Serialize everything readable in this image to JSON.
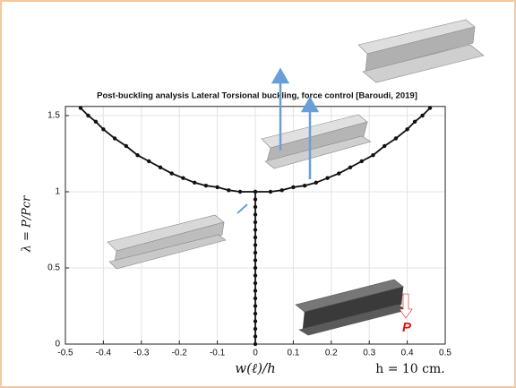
{
  "chart_data": {
    "type": "line",
    "title": "Post-buckling analysis Lateral Torsional buckling,  force control  [Baroudi, 2019]",
    "x_label": "w(ℓ)/h",
    "y_label": "λ = P/Pcr",
    "annotations": [
      "h = 10 cm.",
      "P"
    ],
    "xlim": [
      -0.5,
      0.5
    ],
    "xticks": [
      -0.5,
      -0.4,
      -0.3,
      -0.2,
      -0.1,
      0,
      0.1,
      0.2,
      0.3,
      0.4,
      0.5
    ],
    "ylim": [
      0,
      1.56
    ],
    "yticks": [
      0,
      0.5,
      1,
      1.5
    ],
    "grid": true,
    "series": [
      {
        "color": "#111111",
        "x": [
          -0.46,
          -0.44,
          -0.42,
          -0.4,
          -0.37,
          -0.34,
          -0.31,
          -0.28,
          -0.25,
          -0.22,
          -0.19,
          -0.16,
          -0.13,
          -0.1,
          -0.07,
          -0.04,
          0,
          0.04,
          0.07,
          0.1,
          0.13,
          0.16,
          0.19,
          0.22,
          0.25,
          0.28,
          0.31,
          0.34,
          0.37,
          0.4,
          0.42,
          0.44,
          0.46
        ],
        "values": [
          1.55,
          1.5,
          1.46,
          1.41,
          1.35,
          1.3,
          1.24,
          1.2,
          1.16,
          1.12,
          1.09,
          1.06,
          1.04,
          1.03,
          1.01,
          1.0,
          1.0,
          1.0,
          1.01,
          1.03,
          1.04,
          1.06,
          1.09,
          1.12,
          1.16,
          1.2,
          1.24,
          1.3,
          1.35,
          1.41,
          1.46,
          1.5,
          1.55
        ]
      },
      {
        "color": "#111111",
        "x": [
          0,
          0,
          0,
          0,
          0,
          0,
          0,
          0,
          0,
          0,
          0,
          0,
          0,
          0,
          0,
          0,
          0,
          0,
          0,
          0,
          0
        ],
        "values": [
          0,
          0.05,
          0.1,
          0.15,
          0.2,
          0.25,
          0.3,
          0.35,
          0.4,
          0.45,
          0.5,
          0.55,
          0.6,
          0.65,
          0.7,
          0.75,
          0.8,
          0.85,
          0.9,
          0.95,
          1
        ]
      }
    ]
  }
}
